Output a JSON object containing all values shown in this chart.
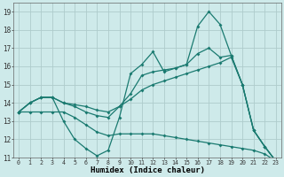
{
  "x": [
    0,
    1,
    2,
    3,
    4,
    5,
    6,
    7,
    8,
    9,
    10,
    11,
    12,
    13,
    14,
    15,
    16,
    17,
    18,
    19,
    20,
    21,
    22,
    23
  ],
  "line1_spiky": [
    13.5,
    14.0,
    14.3,
    14.3,
    13.0,
    12.0,
    11.5,
    11.1,
    11.4,
    13.2,
    15.6,
    16.1,
    16.8,
    15.7,
    15.9,
    16.1,
    18.2,
    19.0,
    18.3,
    16.6,
    15.0,
    12.5,
    11.6,
    10.8
  ],
  "line2_mid": [
    13.5,
    14.0,
    14.3,
    14.3,
    14.0,
    13.8,
    13.5,
    13.3,
    13.2,
    13.8,
    14.5,
    15.5,
    15.7,
    15.8,
    15.9,
    16.1,
    16.7,
    17.0,
    16.5,
    16.6,
    15.0,
    12.5,
    11.6,
    10.8
  ],
  "line3_smooth": [
    13.5,
    14.0,
    14.3,
    14.3,
    14.0,
    13.9,
    13.8,
    13.6,
    13.5,
    13.8,
    14.2,
    14.7,
    15.0,
    15.2,
    15.4,
    15.6,
    15.8,
    16.0,
    16.2,
    16.5,
    15.0,
    12.5,
    11.6,
    10.8
  ],
  "line4_bottom": [
    13.5,
    13.5,
    13.5,
    13.5,
    13.5,
    13.2,
    12.8,
    12.4,
    12.2,
    12.3,
    12.3,
    12.3,
    12.3,
    12.2,
    12.1,
    12.0,
    11.9,
    11.8,
    11.7,
    11.6,
    11.5,
    11.4,
    11.2,
    10.8
  ],
  "line_color": "#1a7a70",
  "bg_color": "#ceeaea",
  "grid_color": "#aecccc",
  "ylim": [
    11,
    19.5
  ],
  "xlim": [
    -0.5,
    23.5
  ],
  "yticks": [
    11,
    12,
    13,
    14,
    15,
    16,
    17,
    18,
    19
  ],
  "xticks": [
    0,
    1,
    2,
    3,
    4,
    5,
    6,
    7,
    8,
    9,
    10,
    11,
    12,
    13,
    14,
    15,
    16,
    17,
    18,
    19,
    20,
    21,
    22,
    23
  ],
  "xlabel": "Humidex (Indice chaleur)"
}
